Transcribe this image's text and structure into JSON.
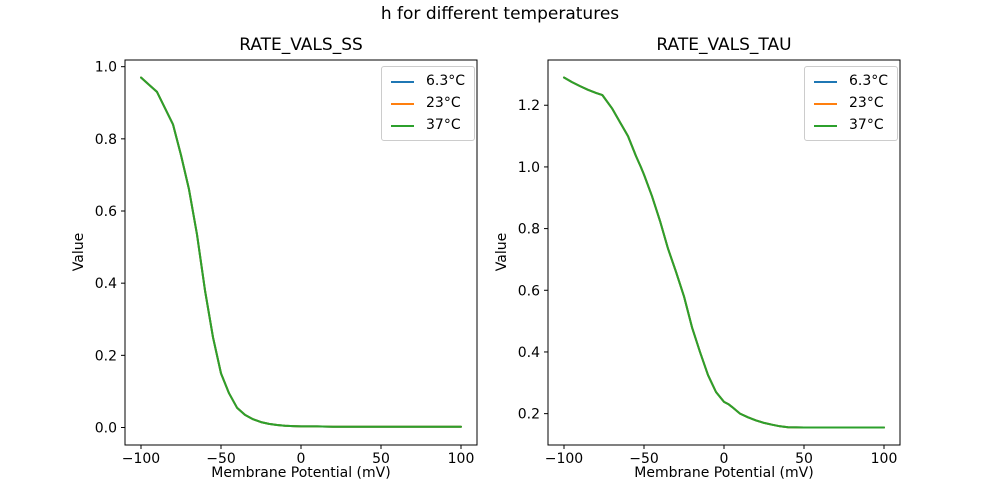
{
  "figure": {
    "suptitle": "h for different temperatures",
    "background_color": "#ffffff",
    "spine_color": "#000000",
    "legend_border_color": "#cccccc"
  },
  "chart_data": [
    {
      "type": "line",
      "title": "RATE_VALS_SS",
      "xlabel": "Membrane Potential (mV)",
      "ylabel": "Value",
      "xlim": [
        -110,
        110
      ],
      "ylim": [
        -0.0485,
        1.0185
      ],
      "xticks": [
        -100,
        -50,
        0,
        50,
        100
      ],
      "xtick_labels": [
        "−100",
        "−50",
        "0",
        "50",
        "100"
      ],
      "yticks": [
        0.0,
        0.2,
        0.4,
        0.6,
        0.8,
        1.0
      ],
      "ytick_labels": [
        "0.0",
        "0.2",
        "0.4",
        "0.6",
        "0.8",
        "1.0"
      ],
      "grid": false,
      "legend_position": "upper right",
      "legend": [
        {
          "label": "6.3°C",
          "color": "#1f77b4"
        },
        {
          "label": "23°C",
          "color": "#ff7f0e"
        },
        {
          "label": "37°C",
          "color": "#2ca02c"
        }
      ],
      "series_note": "All three temperature series coincide exactly; shared y values below. Green (37°C) is drawn last and is the visible curve.",
      "series": [
        {
          "name": "6.3°C",
          "color": "#1f77b4"
        },
        {
          "name": "23°C",
          "color": "#ff7f0e"
        },
        {
          "name": "37°C",
          "color": "#2ca02c"
        }
      ],
      "x": [
        -100,
        -95,
        -90,
        -85,
        -80,
        -75,
        -70,
        -65,
        -60,
        -55,
        -50,
        -45,
        -40,
        -35,
        -30,
        -25,
        -20,
        -15,
        -10,
        -5,
        0,
        10,
        20,
        30,
        40,
        50,
        60,
        70,
        80,
        90,
        100
      ],
      "y": [
        0.97,
        0.95,
        0.93,
        0.885,
        0.84,
        0.755,
        0.66,
        0.535,
        0.38,
        0.25,
        0.15,
        0.095,
        0.055,
        0.035,
        0.023,
        0.015,
        0.01,
        0.007,
        0.005,
        0.004,
        0.003,
        0.003,
        0.002,
        0.002,
        0.002,
        0.002,
        0.002,
        0.002,
        0.002,
        0.002,
        0.002
      ]
    },
    {
      "type": "line",
      "title": "RATE_VALS_TAU",
      "xlabel": "Membrane Potential (mV)",
      "ylabel": "Value",
      "xlim": [
        -110,
        110
      ],
      "ylim": [
        0.0983,
        1.3467
      ],
      "xticks": [
        -100,
        -50,
        0,
        50,
        100
      ],
      "xtick_labels": [
        "−100",
        "−50",
        "0",
        "50",
        "100"
      ],
      "yticks": [
        0.2,
        0.4,
        0.6,
        0.8,
        1.0,
        1.2
      ],
      "ytick_labels": [
        "0.2",
        "0.4",
        "0.6",
        "0.8",
        "1.0",
        "1.2"
      ],
      "grid": false,
      "legend_position": "upper right",
      "legend": [
        {
          "label": "6.3°C",
          "color": "#1f77b4"
        },
        {
          "label": "23°C",
          "color": "#ff7f0e"
        },
        {
          "label": "37°C",
          "color": "#2ca02c"
        }
      ],
      "series_note": "All three temperature series coincide exactly; shared y values below. Green (37°C) is drawn last and is the visible curve.",
      "series": [
        {
          "name": "6.3°C",
          "color": "#1f77b4"
        },
        {
          "name": "23°C",
          "color": "#ff7f0e"
        },
        {
          "name": "37°C",
          "color": "#2ca02c"
        }
      ],
      "x": [
        -100,
        -95,
        -90,
        -85,
        -80,
        -76,
        -70,
        -65,
        -60,
        -55,
        -52,
        -50,
        -45,
        -40,
        -35,
        -30,
        -25,
        -20,
        -15,
        -10,
        -5,
        0,
        3,
        5,
        10,
        15,
        20,
        25,
        30,
        35,
        40,
        50,
        60,
        70,
        80,
        90,
        100
      ],
      "y": [
        1.29,
        1.275,
        1.262,
        1.25,
        1.24,
        1.233,
        1.19,
        1.145,
        1.1,
        1.035,
        1.0,
        0.975,
        0.905,
        0.825,
        0.735,
        0.66,
        0.58,
        0.48,
        0.4,
        0.325,
        0.27,
        0.238,
        0.23,
        0.222,
        0.2,
        0.188,
        0.178,
        0.17,
        0.164,
        0.159,
        0.156,
        0.155,
        0.155,
        0.155,
        0.155,
        0.155,
        0.155
      ]
    }
  ]
}
